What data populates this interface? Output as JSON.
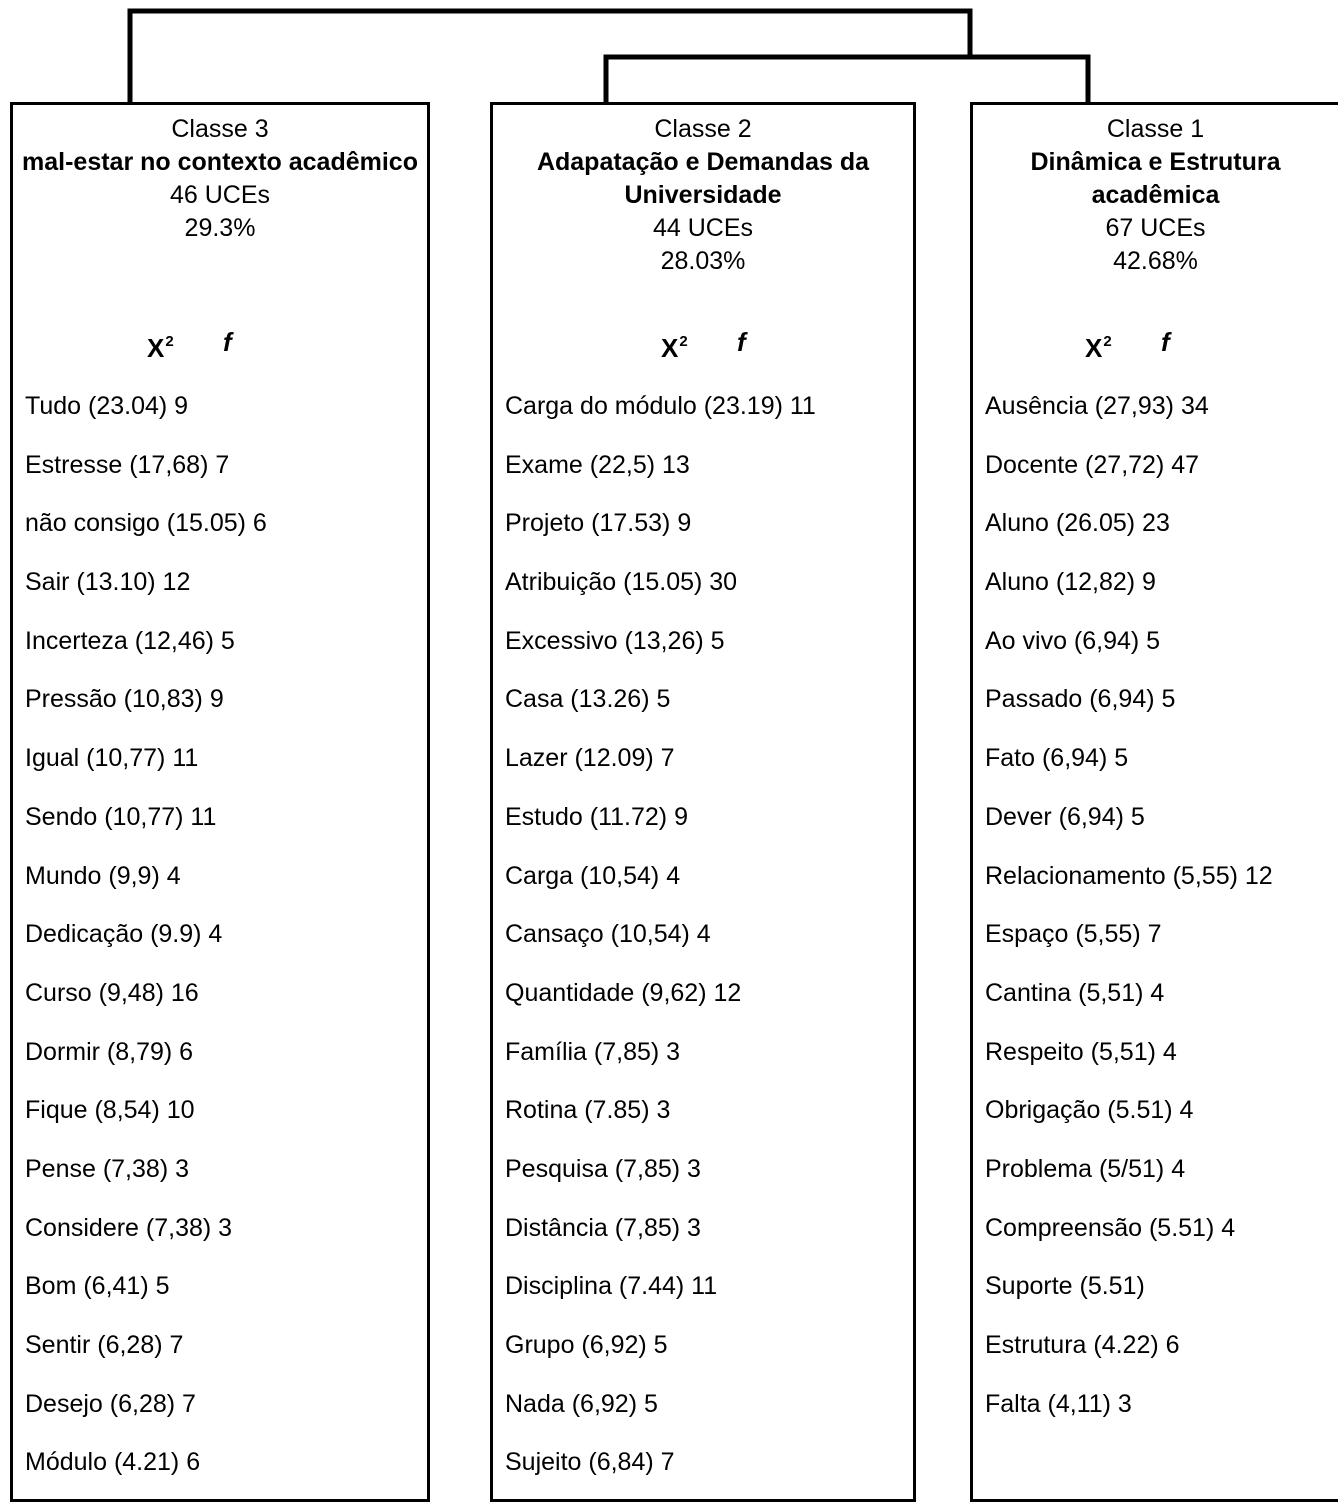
{
  "column_headers": {
    "chi_square": "X",
    "chi_square_sup": "2",
    "frequency": "f"
  },
  "classes": [
    {
      "label": "Classe 3",
      "name": "mal-estar no contexto acadêmico",
      "count": "46 UCEs",
      "percent": "29.3%",
      "words": [
        "Tudo (23.04) 9",
        "Estresse (17,68) 7",
        "não consigo (15.05) 6",
        "Sair (13.10) 12",
        "Incerteza (12,46) 5",
        "Pressão (10,83) 9",
        "Igual (10,77) 11",
        "Sendo (10,77) 11",
        "Mundo (9,9) 4",
        "Dedicação (9.9) 4",
        "Curso (9,48) 16",
        "Dormir (8,79) 6",
        "Fique (8,54) 10",
        "Pense (7,38) 3",
        "Considere (7,38) 3",
        "Bom (6,41) 5",
        "Sentir (6,28) 7",
        "Desejo (6,28) 7",
        "Módulo (4.21) 6"
      ]
    },
    {
      "label": "Classe 2",
      "name": "Adapatação e Demandas da Universidade",
      "count": "44 UCEs",
      "percent": "28.03%",
      "words": [
        "Carga do módulo (23.19) 11",
        "Exame (22,5) 13",
        "Projeto (17.53) 9",
        "Atribuição (15.05) 30",
        "Excessivo (13,26) 5",
        "Casa (13.26) 5",
        "Lazer (12.09) 7",
        "Estudo (11.72) 9",
        "Carga (10,54) 4",
        "Cansaço (10,54) 4",
        "Quantidade (9,62) 12",
        "Família (7,85) 3",
        "Rotina (7.85) 3",
        "Pesquisa (7,85) 3",
        "Distância (7,85) 3",
        "Disciplina (7.44) 11",
        "Grupo (6,92) 5",
        "Nada (6,92) 5",
        "Sujeito (6,84) 7"
      ]
    },
    {
      "label": "Classe 1",
      "name": "Dinâmica e Estrutura acadêmica",
      "count": "67 UCEs",
      "percent": "42.68%",
      "words": [
        "Ausência (27,93) 34",
        "Docente (27,72) 47",
        "Aluno (26.05) 23",
        "Aluno (12,82) 9",
        "Ao vivo (6,94) 5",
        "Passado (6,94) 5",
        "Fato (6,94) 5",
        "Dever (6,94) 5",
        "Relacionamento (5,55) 12",
        "Espaço (5,55) 7",
        "Cantina (5,51) 4",
        "Respeito (5,51) 4",
        "Obrigação (5.51) 4",
        "Problema (5/51) 4",
        "Compreensão (5.51) 4",
        "Suporte (5.51)",
        "Estrutura (4.22) 6",
        "Falta (4,11) 3"
      ]
    }
  ]
}
